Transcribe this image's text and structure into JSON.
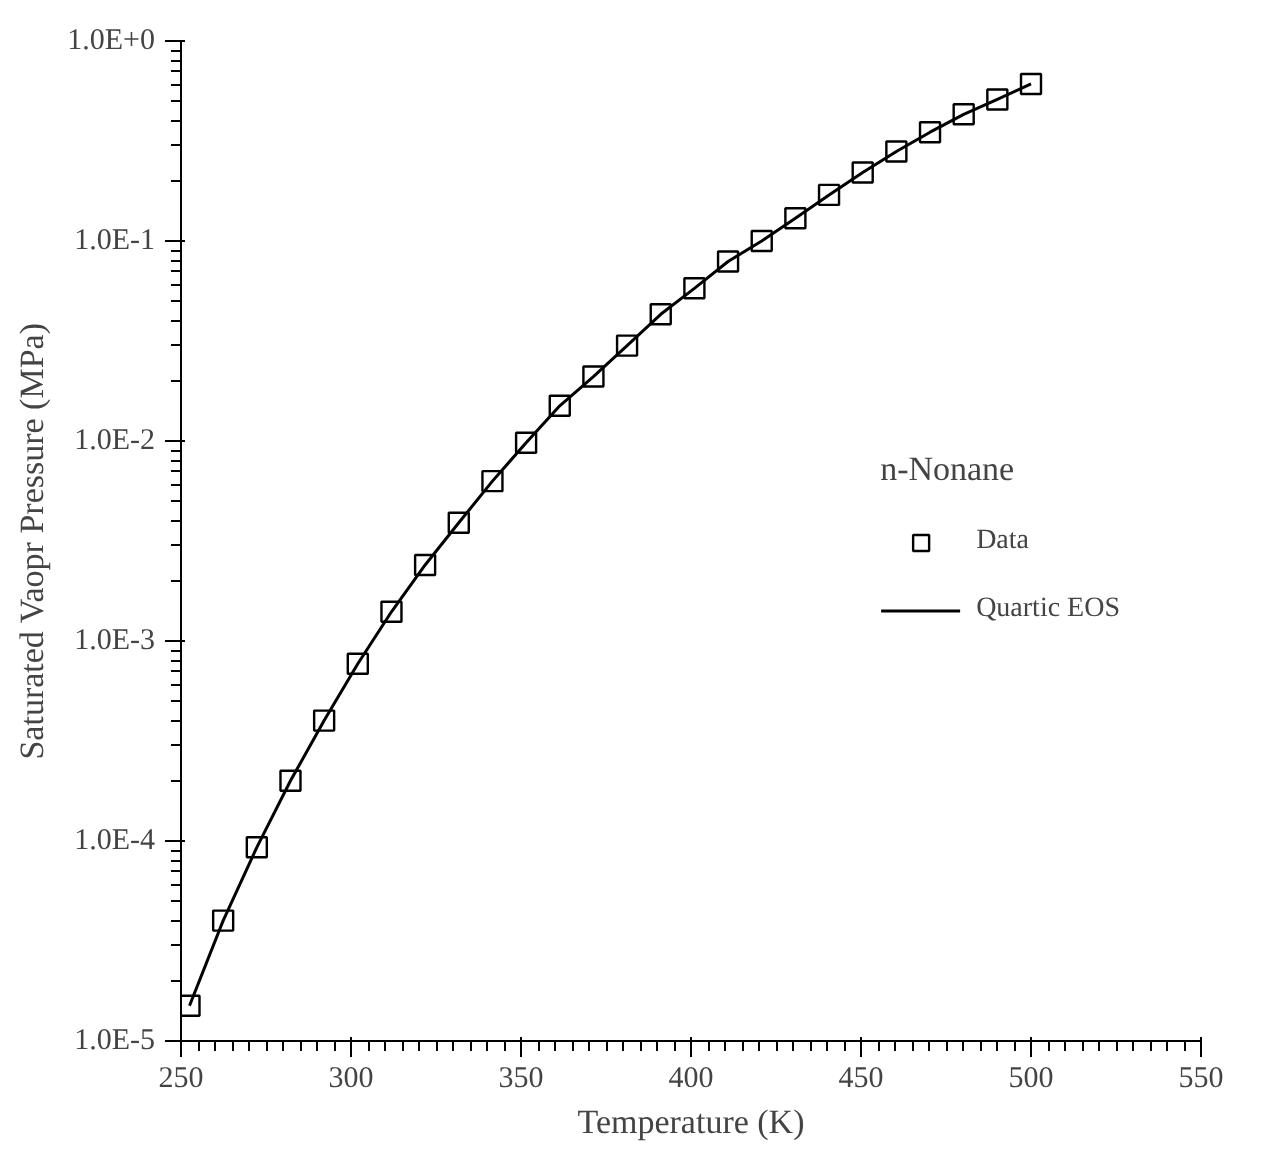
{
  "chart_data": {
    "type": "scatter",
    "xlabel": "Temperature (K)",
    "ylabel": "Saturated Vaopr Pressure (MPa)",
    "legend_title": "n-Nonane",
    "x": [
      252.5,
      262.4,
      272.3,
      282.2,
      292.1,
      302,
      311.9,
      321.8,
      331.7,
      341.6,
      351.5,
      361.4,
      371.3,
      381.2,
      391.1,
      401,
      410.9,
      420.8,
      430.7,
      440.6,
      450.5,
      460.4,
      470.3,
      480.2,
      490.1,
      500
    ],
    "series": [
      {
        "name": "Data",
        "marker": "square",
        "color": "#000000",
        "values": [
          1.5e-05,
          4e-05,
          9.3e-05,
          0.0002,
          0.0004,
          0.00077,
          0.0014,
          0.0024,
          0.0039,
          0.0063,
          0.0098,
          0.015,
          0.021,
          0.03,
          0.043,
          0.058,
          0.079,
          0.1,
          0.13,
          0.17,
          0.22,
          0.28,
          0.35,
          0.43,
          0.51,
          0.61
        ]
      },
      {
        "name": "Quartic EOS",
        "type": "line",
        "line_style": "solid",
        "color": "#000000",
        "values": [
          1.5e-05,
          4e-05,
          9.3e-05,
          0.0002,
          0.0004,
          0.00077,
          0.0014,
          0.0024,
          0.0039,
          0.0063,
          0.0098,
          0.015,
          0.021,
          0.03,
          0.043,
          0.058,
          0.079,
          0.1,
          0.13,
          0.17,
          0.22,
          0.28,
          0.35,
          0.43,
          0.51,
          0.61
        ]
      }
    ],
    "log": "y",
    "grid": false,
    "legend": "right",
    "xlim": [
      250,
      550
    ],
    "xticks": [
      250,
      300,
      350,
      400,
      450,
      500,
      550
    ],
    "ylim": [
      1e-05,
      1
    ],
    "yticks": [
      {
        "value": 1e-05,
        "label": "1.0E-5"
      },
      {
        "value": 0.0001,
        "label": "1.0E-4"
      },
      {
        "value": 0.001,
        "label": "1.0E-3"
      },
      {
        "value": 0.01,
        "label": "1.0E-2"
      },
      {
        "value": 0.1,
        "label": "1.0E-1"
      },
      {
        "value": 1,
        "label": "1.0E+0"
      }
    ]
  }
}
